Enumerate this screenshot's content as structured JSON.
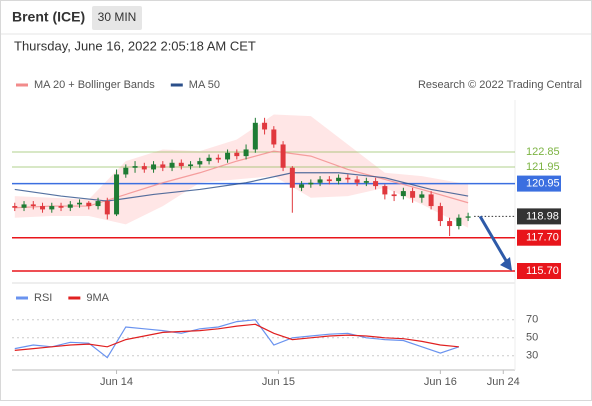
{
  "header": {
    "title": "Brent (ICE)",
    "interval": "30 MIN",
    "timestamp": "Thursday, June 16, 2022 2:05:18 AM CET"
  },
  "chart_data": [
    {
      "type": "candlestick",
      "credit": "Research © 2022 Trading Central",
      "xlim": [
        -0.3,
        54.5
      ],
      "ylim": [
        115.04,
        125.97
      ],
      "xticks": [
        {
          "value": 11,
          "label": "Jun 14"
        },
        {
          "value": 28.5,
          "label": "Jun 15"
        },
        {
          "value": 46,
          "label": "Jun 16"
        },
        {
          "value": 52.8,
          "label": "Jun 24"
        }
      ],
      "up_color": "#1e7b34",
      "down_color": "#e0383e",
      "open": [
        119.6,
        119.5,
        119.7,
        119.6,
        119.4,
        119.6,
        119.5,
        119.7,
        119.8,
        119.6,
        119.9,
        119.1,
        121.5,
        121.9,
        122.0,
        121.8,
        122.1,
        121.9,
        122.2,
        122.0,
        122.1,
        122.3,
        122.5,
        122.4,
        122.8,
        122.6,
        123.0,
        124.6,
        124.2,
        123.3,
        121.9,
        120.7,
        120.9,
        121.0,
        121.2,
        121.1,
        121.3,
        121.2,
        121.0,
        121.1,
        120.8,
        120.3,
        120.2,
        120.5,
        120.1,
        120.3,
        119.6,
        118.7,
        118.4,
        118.9
      ],
      "high": [
        119.8,
        119.9,
        119.9,
        119.8,
        119.8,
        119.8,
        119.9,
        120.0,
        119.9,
        120.1,
        120.1,
        121.8,
        122.1,
        122.3,
        122.2,
        122.3,
        122.3,
        122.4,
        122.4,
        122.3,
        122.5,
        122.7,
        122.7,
        123.0,
        123.0,
        123.3,
        124.9,
        124.9,
        124.4,
        123.5,
        122.0,
        121.1,
        121.2,
        121.4,
        121.4,
        121.5,
        121.5,
        121.4,
        121.3,
        121.3,
        120.9,
        120.5,
        120.7,
        120.7,
        120.5,
        120.5,
        119.8,
        118.9,
        119.1,
        119.2
      ],
      "low": [
        119.3,
        119.3,
        119.4,
        119.2,
        119.2,
        119.3,
        119.3,
        119.5,
        119.4,
        119.4,
        118.8,
        119.0,
        121.3,
        121.6,
        121.6,
        121.6,
        121.7,
        121.7,
        121.8,
        121.8,
        121.9,
        122.1,
        122.2,
        122.2,
        122.4,
        122.4,
        122.8,
        123.9,
        123.1,
        121.7,
        119.2,
        120.5,
        120.7,
        120.8,
        120.9,
        120.9,
        121.0,
        120.8,
        120.8,
        120.6,
        120.0,
        119.9,
        120.0,
        119.8,
        119.8,
        119.4,
        118.4,
        117.8,
        118.2,
        118.7
      ],
      "close": [
        119.5,
        119.7,
        119.6,
        119.4,
        119.6,
        119.5,
        119.7,
        119.8,
        119.6,
        119.9,
        119.1,
        121.5,
        121.9,
        122.0,
        121.8,
        122.1,
        121.9,
        122.2,
        122.0,
        122.1,
        122.3,
        122.5,
        122.4,
        122.8,
        122.6,
        123.0,
        124.6,
        124.2,
        123.3,
        121.9,
        120.7,
        120.9,
        121.0,
        121.2,
        121.1,
        121.3,
        121.2,
        121.0,
        121.1,
        120.8,
        120.3,
        120.2,
        120.5,
        120.1,
        120.3,
        119.6,
        118.7,
        118.4,
        118.9,
        118.98
      ],
      "series": [
        {
          "name": "MA 20 + Bollinger Bands",
          "color": "#f28b8b",
          "x": [
            0,
            4,
            8,
            12,
            16,
            20,
            24,
            28,
            32,
            36,
            40,
            44,
            49
          ],
          "values": [
            119.5,
            119.6,
            119.6,
            120.3,
            121.0,
            121.6,
            122.3,
            122.9,
            122.6,
            121.8,
            121.2,
            120.6,
            119.8
          ],
          "upper": [
            120.2,
            120.1,
            120.0,
            122.3,
            123.0,
            122.9,
            123.6,
            125.1,
            125.0,
            123.3,
            121.6,
            121.4,
            120.9
          ],
          "lower": [
            118.9,
            119.0,
            119.0,
            118.5,
            119.6,
            121.0,
            121.2,
            121.4,
            120.1,
            120.2,
            120.7,
            119.7,
            118.3
          ]
        },
        {
          "name": "MA 50",
          "color": "#2b4f8a",
          "x": [
            0,
            5,
            10,
            15,
            20,
            25,
            30,
            35,
            40,
            45,
            49
          ],
          "values": [
            120.6,
            120.2,
            119.9,
            120.3,
            120.6,
            121.0,
            121.6,
            121.6,
            121.3,
            120.6,
            120.2
          ]
        }
      ],
      "levels": [
        {
          "value": 122.85,
          "label": "122.85",
          "color": "#7cb342",
          "style": "text"
        },
        {
          "value": 121.95,
          "label": "121.95",
          "color": "#7cb342",
          "style": "text"
        },
        {
          "value": 120.95,
          "label": "120.95",
          "color": "#3b6fe0",
          "style": "box"
        },
        {
          "value": 118.98,
          "label": "118.98",
          "color": "#333333",
          "style": "dotted"
        },
        {
          "value": 117.7,
          "label": "117.70",
          "color": "#e8151b",
          "style": "box"
        },
        {
          "value": 115.7,
          "label": "115.70",
          "color": "#e8151b",
          "style": "box"
        }
      ]
    },
    {
      "type": "line",
      "xlim": [
        -0.3,
        54.5
      ],
      "ylim": [
        12,
        92
      ],
      "yticks": [
        30,
        50,
        70
      ],
      "grid": true,
      "x": [
        0,
        2,
        4,
        6,
        8,
        10,
        12,
        14,
        16,
        18,
        20,
        22,
        24,
        26,
        28,
        30,
        32,
        34,
        36,
        38,
        40,
        42,
        44,
        46,
        48
      ],
      "series": [
        {
          "name": "RSI",
          "color": "#6a93ef",
          "values": [
            38,
            42,
            40,
            45,
            44,
            28,
            62,
            60,
            58,
            55,
            60,
            62,
            68,
            70,
            42,
            50,
            52,
            54,
            55,
            50,
            48,
            47,
            40,
            33,
            40
          ]
        },
        {
          "name": "9MA",
          "color": "#e02020",
          "values": [
            36,
            38,
            40,
            42,
            43,
            40,
            48,
            52,
            56,
            57,
            58,
            60,
            63,
            65,
            55,
            48,
            50,
            52,
            53,
            52,
            50,
            49,
            46,
            42,
            40
          ]
        }
      ]
    }
  ]
}
